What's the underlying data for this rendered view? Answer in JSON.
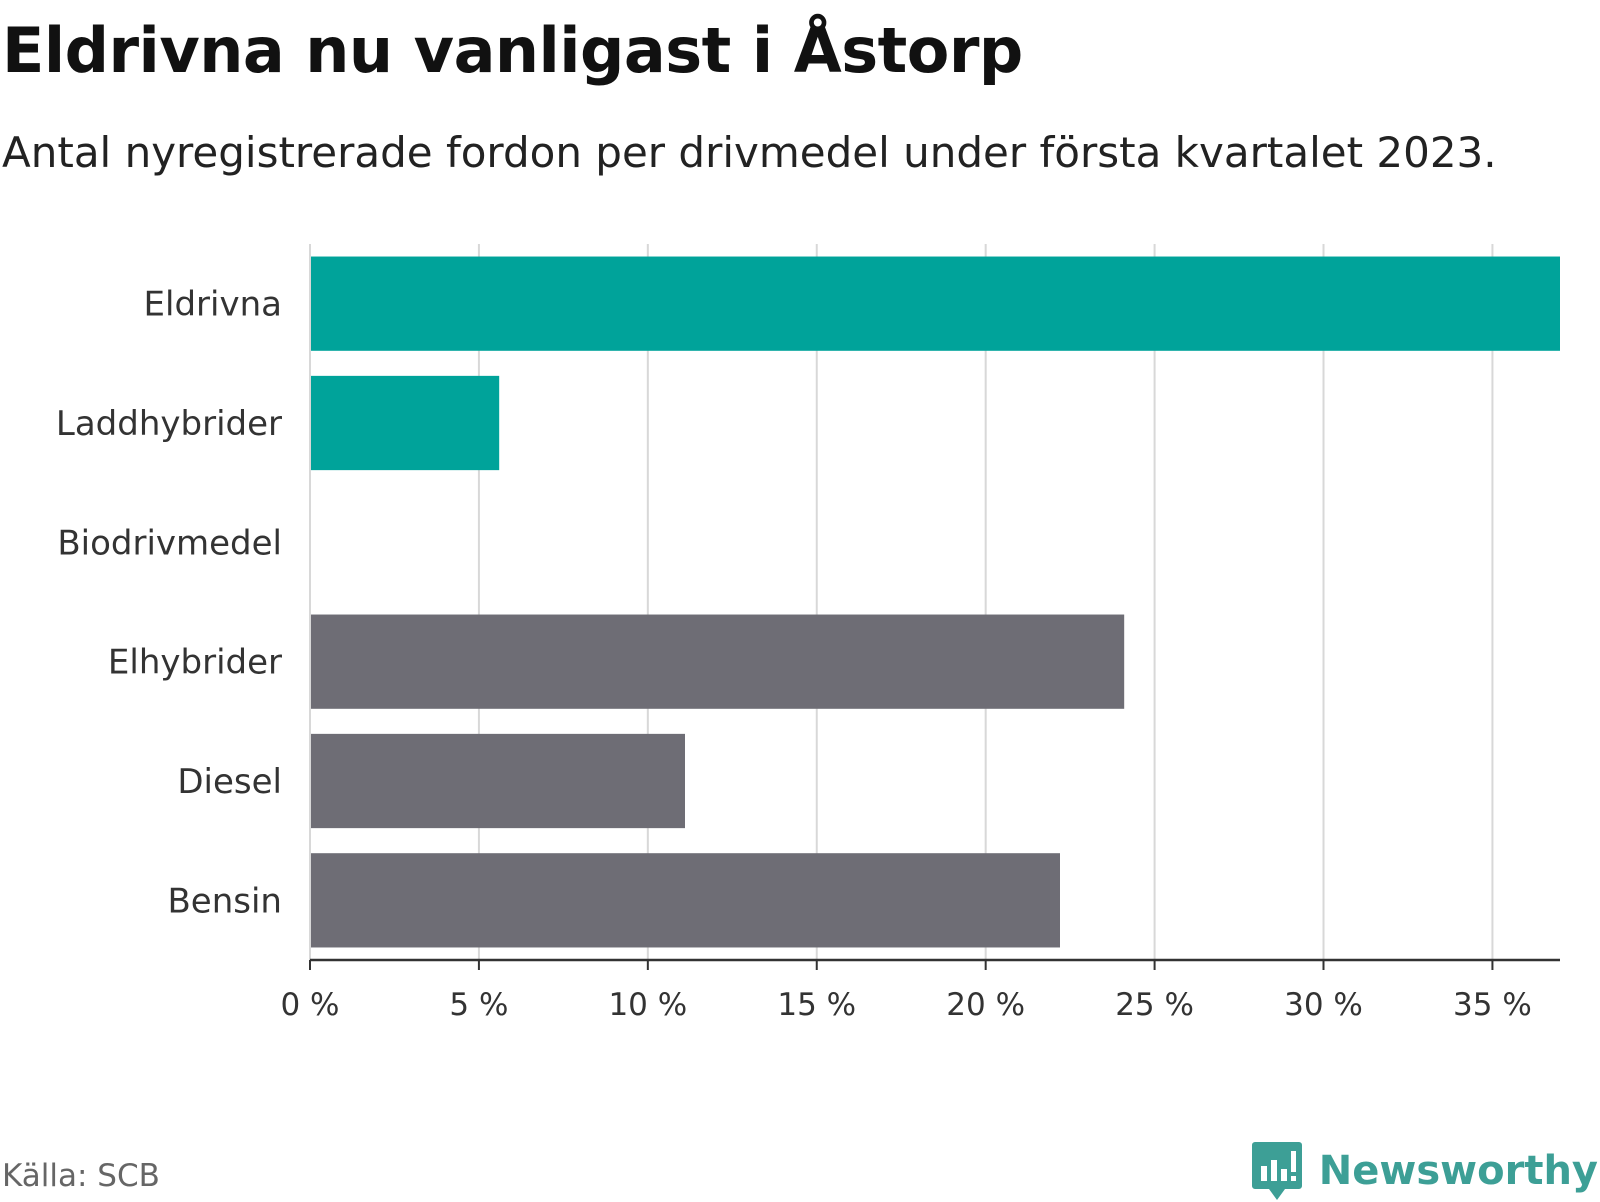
{
  "title": "Eldrivna nu vanligast i Åstorp",
  "subtitle": "Antal nyregistrerade fordon per drivmedel under första kvartalet 2023.",
  "source": "Källa: SCB",
  "brand": {
    "name": "Newsworthy",
    "icon": "newsworthy-logo-icon"
  },
  "colors": {
    "highlight": "#00a39a",
    "neutral": "#6e6d75",
    "grid": "#d8d8d8",
    "axis": "#333333"
  },
  "chart_data": {
    "type": "bar",
    "orientation": "horizontal",
    "categories": [
      "Eldrivna",
      "Laddhybrider",
      "Biodrivmedel",
      "Elhybrider",
      "Diesel",
      "Bensin"
    ],
    "values": [
      37.0,
      5.6,
      0,
      24.1,
      11.1,
      22.2
    ],
    "highlighted": [
      "Eldrivna",
      "Laddhybrider"
    ],
    "unit": "%",
    "xlim": [
      0,
      37
    ],
    "xticks": [
      0,
      5,
      10,
      15,
      20,
      25,
      30,
      35
    ],
    "xtick_labels": [
      "0 %",
      "5 %",
      "10 %",
      "15 %",
      "20 %",
      "25 %",
      "30 %",
      "35 %"
    ],
    "grid": true
  }
}
